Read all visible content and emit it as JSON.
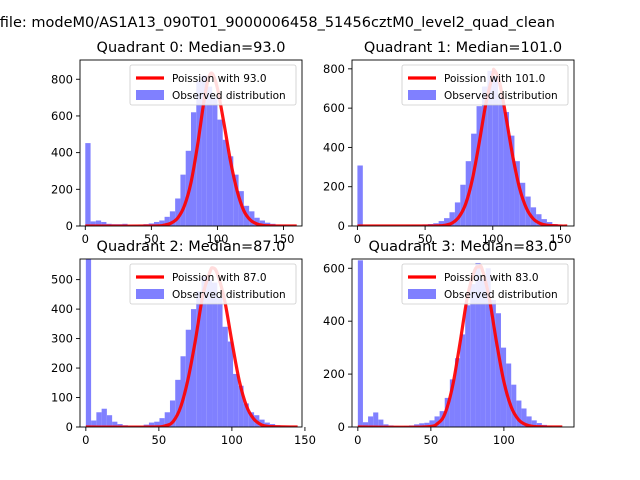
{
  "figure": {
    "suptitle": "n file: modeM0/AS1A13_090T01_9000006458_51456cztM0_level2_quad_clean"
  },
  "colors": {
    "hist": "#8080ff",
    "poisson": "#ff0000",
    "axes": "#000000",
    "legend_border": "#cccccc"
  },
  "chart_data": [
    {
      "type": "bar",
      "title": "Quadrant 0: Median=93.0",
      "median": 93.0,
      "xlim": [
        -4,
        164
      ],
      "ylim": [
        0,
        905
      ],
      "xticks": [
        0,
        50,
        100,
        150
      ],
      "yticks": [
        0,
        200,
        400,
        600,
        800
      ],
      "legend": [
        "Poission with 93.0",
        "Observed distribution"
      ],
      "legend_loc": "upper right",
      "hist": {
        "bin_width": 4,
        "bin_starts": [
          0,
          4,
          8,
          12,
          16,
          20,
          24,
          28,
          32,
          36,
          40,
          44,
          48,
          52,
          56,
          60,
          64,
          68,
          72,
          76,
          80,
          84,
          88,
          92,
          96,
          100,
          104,
          108,
          112,
          116,
          120,
          124,
          128,
          132,
          136,
          140,
          144,
          148,
          152,
          156
        ],
        "counts": [
          452,
          25,
          30,
          22,
          12,
          10,
          10,
          12,
          6,
          6,
          8,
          10,
          14,
          22,
          30,
          50,
          80,
          150,
          280,
          410,
          620,
          790,
          820,
          760,
          700,
          580,
          470,
          380,
          280,
          190,
          110,
          80,
          45,
          30,
          18,
          12,
          8,
          6,
          3,
          2
        ]
      },
      "poisson": {
        "x": [
          0,
          50,
          60,
          65,
          70,
          75,
          80,
          85,
          90,
          93,
          96,
          100,
          105,
          110,
          115,
          120,
          125,
          130,
          135,
          140,
          150,
          160
        ],
        "y": [
          0,
          0,
          5,
          16,
          44,
          110,
          237,
          443,
          690,
          798,
          832,
          750,
          557,
          350,
          189,
          83,
          32,
          11,
          3,
          1,
          0,
          0
        ]
      }
    },
    {
      "type": "bar",
      "title": "Quadrant 1: Median=101.0",
      "median": 101.0,
      "xlim": [
        -4,
        160
      ],
      "ylim": [
        0,
        845
      ],
      "xticks": [
        0,
        50,
        100,
        150
      ],
      "yticks": [
        0,
        200,
        400,
        600,
        800
      ],
      "legend": [
        "Poission with 101.0",
        "Observed distribution"
      ],
      "legend_loc": "upper right",
      "hist": {
        "bin_width": 4,
        "bin_starts": [
          0,
          4,
          8,
          12,
          16,
          20,
          24,
          28,
          32,
          36,
          40,
          44,
          48,
          52,
          56,
          60,
          64,
          68,
          72,
          76,
          80,
          84,
          88,
          92,
          96,
          100,
          104,
          108,
          112,
          116,
          120,
          124,
          128,
          132,
          136,
          140,
          144,
          148
        ],
        "counts": [
          308,
          3,
          2,
          2,
          2,
          2,
          2,
          2,
          3,
          4,
          5,
          5,
          8,
          10,
          14,
          25,
          40,
          70,
          120,
          210,
          330,
          470,
          610,
          710,
          790,
          760,
          660,
          580,
          460,
          330,
          220,
          150,
          95,
          60,
          35,
          20,
          10,
          5
        ]
      },
      "poisson": {
        "x": [
          0,
          50,
          60,
          65,
          70,
          75,
          80,
          85,
          90,
          95,
          100,
          101,
          105,
          110,
          115,
          120,
          125,
          130,
          135,
          140,
          150,
          155
        ],
        "y": [
          0,
          0,
          1,
          4,
          15,
          46,
          113,
          240,
          425,
          627,
          770,
          795,
          732,
          545,
          346,
          187,
          88,
          36,
          13,
          4,
          0,
          0
        ]
      }
    },
    {
      "type": "bar",
      "title": "Quadrant 2: Median=87.0",
      "median": 87.0,
      "xlim": [
        -4,
        148
      ],
      "ylim": [
        0,
        570
      ],
      "xticks": [
        0,
        50,
        100,
        150
      ],
      "yticks": [
        0,
        100,
        200,
        300,
        400,
        500
      ],
      "legend": [
        "Poission with 87.0",
        "Observed distribution"
      ],
      "legend_loc": "upper right",
      "hist": {
        "bin_width": 3.6,
        "bin_starts": [
          0,
          3.6,
          7.2,
          10.8,
          14.4,
          18,
          21.6,
          25.2,
          28.8,
          32.4,
          36,
          39.6,
          43.2,
          46.8,
          50.4,
          54,
          57.6,
          61.2,
          64.8,
          68.4,
          72,
          75.6,
          79.2,
          82.8,
          86.4,
          90,
          93.6,
          97.2,
          100.8,
          104.4,
          108,
          111.6,
          115.2,
          118.8,
          122.4,
          126,
          129.6,
          133.2,
          136.8,
          140.4
        ],
        "counts": [
          570,
          22,
          50,
          62,
          40,
          18,
          10,
          6,
          4,
          4,
          4,
          8,
          15,
          18,
          30,
          50,
          90,
          160,
          240,
          330,
          400,
          460,
          510,
          500,
          490,
          440,
          340,
          290,
          180,
          140,
          80,
          50,
          40,
          25,
          15,
          10,
          6,
          4,
          3,
          2
        ]
      },
      "poisson": {
        "x": [
          0,
          45,
          55,
          60,
          65,
          70,
          75,
          80,
          85,
          87,
          90,
          95,
          100,
          105,
          110,
          115,
          120,
          125,
          130,
          140,
          145
        ],
        "y": [
          0,
          0,
          5,
          20,
          69,
          163,
          294,
          444,
          527,
          540,
          521,
          430,
          290,
          158,
          71,
          27,
          8,
          2,
          1,
          0,
          0
        ]
      }
    },
    {
      "type": "bar",
      "title": "Quadrant 3: Median=83.0",
      "median": 83.0,
      "xlim": [
        -4,
        148
      ],
      "ylim": [
        0,
        635
      ],
      "xticks": [
        0,
        50,
        100
      ],
      "yticks": [
        0,
        200,
        400,
        600
      ],
      "legend": [
        "Poission with 83.0",
        "Observed distribution"
      ],
      "legend_loc": "upper right",
      "hist": {
        "bin_width": 3.5,
        "bin_starts": [
          0,
          3.5,
          7,
          10.5,
          14,
          17.5,
          21,
          24.5,
          28,
          31.5,
          35,
          38.5,
          42,
          45.5,
          49,
          52.5,
          56,
          59.5,
          63,
          66.5,
          70,
          73.5,
          77,
          80.5,
          84,
          87.5,
          91,
          94.5,
          98,
          101.5,
          105,
          108.5,
          112,
          115.5,
          119,
          122.5,
          126,
          129.5,
          133,
          136.5
        ],
        "counts": [
          630,
          18,
          40,
          55,
          28,
          10,
          6,
          4,
          3,
          4,
          6,
          10,
          14,
          16,
          25,
          40,
          60,
          110,
          180,
          260,
          350,
          460,
          540,
          620,
          560,
          600,
          480,
          430,
          300,
          240,
          160,
          100,
          70,
          40,
          25,
          15,
          8,
          4,
          2,
          1
        ]
      },
      "poisson": {
        "x": [
          0,
          45,
          55,
          60,
          65,
          70,
          75,
          80,
          83,
          85,
          90,
          95,
          100,
          105,
          110,
          115,
          120,
          125,
          130,
          140
        ],
        "y": [
          0,
          0,
          15,
          56,
          158,
          319,
          491,
          592,
          605,
          598,
          486,
          319,
          171,
          76,
          28,
          9,
          2,
          1,
          0,
          0
        ]
      }
    }
  ]
}
